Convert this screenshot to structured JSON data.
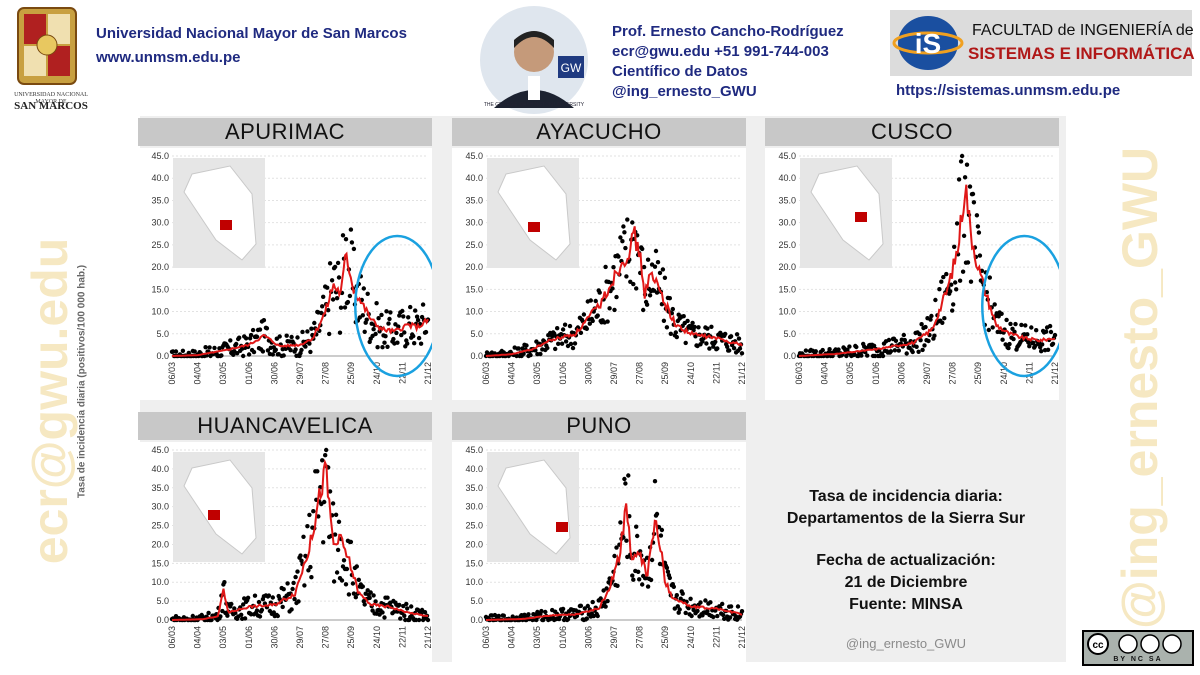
{
  "header": {
    "university": "Universidad Nacional Mayor de San Marcos",
    "university_site": "www.unmsm.edu.pe",
    "crest_small": "UNIVERSIDAD NACIONAL MAYOR DE",
    "crest_big": "SAN MARCOS",
    "photo_caption": "THE GEORGE WASHINGTON UNIVERSITY",
    "photo_badge": "GW",
    "prof_name": "Prof. Ernesto Cancho-Rodríguez",
    "prof_contact": "ecr@gwu.edu +51 991-744-003",
    "prof_role": "Científico de Datos",
    "prof_handle": "@ing_ernesto_GWU",
    "faculty_line1": "FACULTAD de INGENIERÍA de",
    "faculty_line2": "SISTEMAS E INFORMÁTICA",
    "faculty_logo": "iS",
    "faculty_site": "https://sistemas.unmsm.edu.pe"
  },
  "watermarks": {
    "left": "ecr@gwu.edu",
    "right": "@ing_ernesto_GWU"
  },
  "y_axis_label": "Tasa de incidencia diaria (positivos/100 000 hab.)",
  "info": {
    "line1": "Tasa de incidencia diaria:",
    "line2": "Departamentos de la Sierra Sur",
    "line3": "Fecha de actualización:",
    "line4": "21 de Diciembre",
    "line5": "Fuente: MINSA",
    "handle": "@ing_ernesto_GWU"
  },
  "license": {
    "text": "BY  NC  SA"
  },
  "colors": {
    "line": "#e01818",
    "points": "#000000",
    "circle": "#1aa1e0",
    "title_bg": "#c8c8c8",
    "header_text": "#1f2a80"
  },
  "chart_data": [
    {
      "type": "line",
      "title": "APURIMAC",
      "ylim": [
        0,
        45
      ],
      "yticks": [
        "0.0",
        "5.0",
        "10.0",
        "15.0",
        "20.0",
        "25.0",
        "30.0",
        "35.0",
        "40.0",
        "45.0"
      ],
      "xticks": [
        "06/03",
        "04/04",
        "03/05",
        "01/06",
        "30/06",
        "29/07",
        "27/08",
        "25/09",
        "24/10",
        "22/11",
        "21/12"
      ],
      "highlight_circle": true,
      "keypoints": [
        [
          0,
          0
        ],
        [
          0.1,
          0.2
        ],
        [
          0.2,
          1.2
        ],
        [
          0.3,
          2.5
        ],
        [
          0.36,
          4.6
        ],
        [
          0.42,
          2.2
        ],
        [
          0.5,
          2.5
        ],
        [
          0.55,
          4
        ],
        [
          0.6,
          10
        ],
        [
          0.63,
          16
        ],
        [
          0.66,
          14
        ],
        [
          0.68,
          23
        ],
        [
          0.71,
          15
        ],
        [
          0.74,
          12
        ],
        [
          0.78,
          8
        ],
        [
          0.82,
          6
        ],
        [
          0.87,
          5.5
        ],
        [
          0.92,
          7
        ],
        [
          0.96,
          6.5
        ],
        [
          1,
          8
        ]
      ],
      "scatter_spread": 0.55
    },
    {
      "type": "line",
      "title": "AYACUCHO",
      "ylim": [
        0,
        45
      ],
      "yticks": [
        "0.0",
        "5.0",
        "10.0",
        "15.0",
        "20.0",
        "25.0",
        "30.0",
        "35.0",
        "40.0",
        "45.0"
      ],
      "xticks": [
        "06/03",
        "04/04",
        "03/05",
        "01/06",
        "30/06",
        "29/07",
        "27/08",
        "25/09",
        "24/10",
        "22/11",
        "21/12"
      ],
      "highlight_circle": false,
      "keypoints": [
        [
          0,
          0
        ],
        [
          0.1,
          0.4
        ],
        [
          0.18,
          1.5
        ],
        [
          0.25,
          3.5
        ],
        [
          0.35,
          5
        ],
        [
          0.45,
          12
        ],
        [
          0.52,
          20
        ],
        [
          0.56,
          24
        ],
        [
          0.58,
          27
        ],
        [
          0.6,
          23
        ],
        [
          0.62,
          14
        ],
        [
          0.64,
          18
        ],
        [
          0.67,
          16
        ],
        [
          0.7,
          12
        ],
        [
          0.74,
          7
        ],
        [
          0.8,
          5
        ],
        [
          0.9,
          4
        ],
        [
          1,
          2.5
        ]
      ],
      "scatter_spread": 0.4
    },
    {
      "type": "line",
      "title": "CUSCO",
      "ylim": [
        0,
        45
      ],
      "yticks": [
        "0.0",
        "5.0",
        "10.0",
        "15.0",
        "20.0",
        "25.0",
        "30.0",
        "35.0",
        "40.0",
        "45.0"
      ],
      "xticks": [
        "06/03",
        "04/04",
        "03/05",
        "01/06",
        "30/06",
        "29/07",
        "27/08",
        "25/09",
        "24/10",
        "22/11",
        "21/12"
      ],
      "highlight_circle": true,
      "keypoints": [
        [
          0,
          0
        ],
        [
          0.15,
          0.5
        ],
        [
          0.3,
          1.5
        ],
        [
          0.45,
          3
        ],
        [
          0.52,
          6
        ],
        [
          0.58,
          15
        ],
        [
          0.62,
          24
        ],
        [
          0.65,
          39
        ],
        [
          0.67,
          28
        ],
        [
          0.7,
          20
        ],
        [
          0.73,
          14
        ],
        [
          0.77,
          7
        ],
        [
          0.82,
          5
        ],
        [
          0.88,
          4
        ],
        [
          0.94,
          3.5
        ],
        [
          1,
          4
        ]
      ],
      "scatter_spread": 0.45
    },
    {
      "type": "line",
      "title": "HUANCAVELICA",
      "ylim": [
        0,
        45
      ],
      "yticks": [
        "0.0",
        "5.0",
        "10.0",
        "15.0",
        "20.0",
        "25.0",
        "30.0",
        "35.0",
        "40.0",
        "45.0"
      ],
      "xticks": [
        "06/03",
        "04/04",
        "03/05",
        "01/06",
        "30/06",
        "29/07",
        "27/08",
        "25/09",
        "24/10",
        "22/11",
        "21/12"
      ],
      "highlight_circle": false,
      "keypoints": [
        [
          0,
          0
        ],
        [
          0.12,
          0.2
        ],
        [
          0.18,
          1
        ],
        [
          0.2,
          8
        ],
        [
          0.22,
          2
        ],
        [
          0.3,
          3.5
        ],
        [
          0.4,
          4
        ],
        [
          0.48,
          7
        ],
        [
          0.54,
          20
        ],
        [
          0.58,
          34
        ],
        [
          0.6,
          40
        ],
        [
          0.63,
          20
        ],
        [
          0.66,
          21
        ],
        [
          0.69,
          16
        ],
        [
          0.73,
          7
        ],
        [
          0.78,
          4
        ],
        [
          0.85,
          3.5
        ],
        [
          0.92,
          2
        ],
        [
          1,
          1
        ]
      ],
      "scatter_spread": 0.5
    },
    {
      "type": "line",
      "title": "PUNO",
      "ylim": [
        0,
        45
      ],
      "yticks": [
        "0.0",
        "5.0",
        "10.0",
        "15.0",
        "20.0",
        "25.0",
        "30.0",
        "35.0",
        "40.0",
        "45.0"
      ],
      "xticks": [
        "06/03",
        "04/04",
        "03/05",
        "01/06",
        "30/06",
        "29/07",
        "27/08",
        "25/09",
        "24/10",
        "22/11",
        "21/12"
      ],
      "highlight_circle": false,
      "keypoints": [
        [
          0,
          0
        ],
        [
          0.15,
          0.3
        ],
        [
          0.25,
          1.2
        ],
        [
          0.35,
          1.5
        ],
        [
          0.44,
          3
        ],
        [
          0.48,
          8
        ],
        [
          0.52,
          17
        ],
        [
          0.55,
          30
        ],
        [
          0.57,
          16
        ],
        [
          0.6,
          17
        ],
        [
          0.63,
          12
        ],
        [
          0.66,
          26
        ],
        [
          0.68,
          20
        ],
        [
          0.7,
          10
        ],
        [
          0.73,
          6
        ],
        [
          0.8,
          3.5
        ],
        [
          0.9,
          3
        ],
        [
          1,
          1.5
        ]
      ],
      "scatter_spread": 0.45
    }
  ]
}
